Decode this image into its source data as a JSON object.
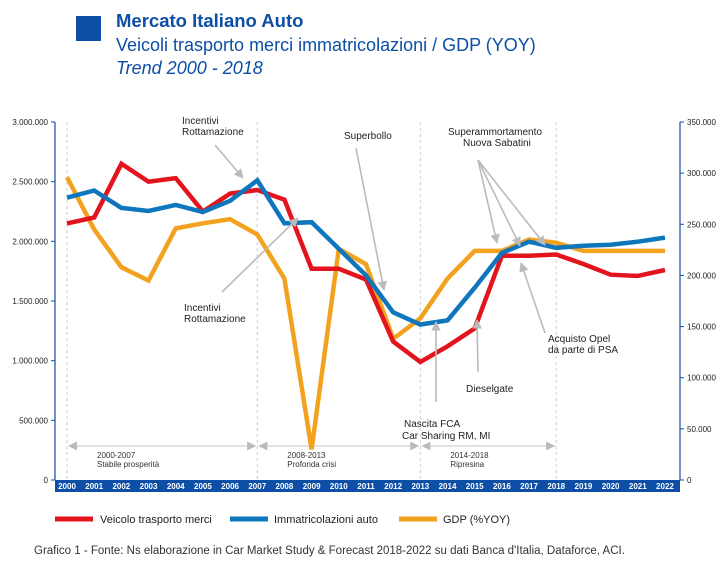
{
  "header": {
    "title": "Mercato Italiano Auto",
    "subtitle": "Veicoli trasporto merci immatricolazioni / GDP (YOY)",
    "trend": "Trend 2000 - 2018"
  },
  "caption": "Grafico 1 - Fonte: Ns elaborazione in Car Market Study & Forecast 2018-2022 su dati Banca d'Italia, Dataforce, ACI.",
  "colors": {
    "red": "#e3141e",
    "blue": "#0e76bc",
    "orange": "#f2a21e",
    "axis": "#0d4ea6",
    "grid": "#cccccc",
    "band": "#d8d8d8"
  },
  "chart_data": {
    "type": "line",
    "x": [
      "2000",
      "2001",
      "2002",
      "2003",
      "2004",
      "2005",
      "2006",
      "2007",
      "2008",
      "2009",
      "2010",
      "2011",
      "2012",
      "2013",
      "2014",
      "2015",
      "2016",
      "2017",
      "2018",
      "2019",
      "2020",
      "2021",
      "2022"
    ],
    "left_axis": {
      "ylim": [
        0,
        3000000
      ],
      "ticks": [
        "0",
        "500.000",
        "1.000.000",
        "1.500.000",
        "2.000.000",
        "2.500.000",
        "3.000.000"
      ]
    },
    "right_axis": {
      "ylim": [
        0,
        350000
      ],
      "ticks": [
        "0",
        "50.000",
        "100.000",
        "150.000",
        "200.000",
        "250.000",
        "300.000",
        "350.000"
      ]
    },
    "series": [
      {
        "name": "Veicolo trasporto merci",
        "axis": "left",
        "color": "#e3141e",
        "values": [
          2150000,
          2200000,
          2650000,
          2500000,
          2530000,
          2250000,
          2400000,
          2430000,
          2350000,
          1770000,
          1770000,
          1680000,
          1160000,
          990000,
          1120000,
          1270000,
          1880000,
          1880000,
          1890000,
          1810000,
          1720000,
          1710000,
          1760000
        ]
      },
      {
        "name": "Immatricolazioni auto",
        "axis": "right",
        "color": "#0e76bc",
        "values": [
          276000,
          283000,
          266000,
          263000,
          269000,
          262000,
          273000,
          293000,
          251000,
          252000,
          226000,
          200000,
          164000,
          152000,
          156000,
          188000,
          222000,
          233000,
          227000,
          229000,
          230000,
          233000,
          237000
        ]
      },
      {
        "name": "GDP (%YOY)",
        "axis": "right",
        "color": "#f2a21e",
        "values": [
          296000,
          245000,
          208000,
          195000,
          246000,
          251000,
          255000,
          240000,
          197000,
          30000,
          226000,
          211000,
          138000,
          158000,
          197000,
          224000,
          224000,
          235000,
          232000,
          224000,
          224000,
          224000,
          224000
        ]
      }
    ],
    "periods": [
      {
        "label1": "2000-2007",
        "label2": "Stabile prosperità",
        "from": "2000",
        "to": "2007"
      },
      {
        "label1": "2008-2013",
        "label2": "Profonda crisi",
        "from": "2007",
        "to": "2013"
      },
      {
        "label1": "2014-2018",
        "label2": "Ripresina",
        "from": "2013",
        "to": "2018"
      }
    ],
    "annotations": [
      {
        "id": "incentivi1",
        "line1": "Incentivi",
        "line2": "Rottamazione",
        "target": "2007"
      },
      {
        "id": "incentivi2",
        "line1": "Incentivi",
        "line2": "Rottamazione",
        "target": "2008"
      },
      {
        "id": "superbollo",
        "line1": "Superbollo",
        "line2": "",
        "target": "2011"
      },
      {
        "id": "superamm",
        "line1": "Superammortamento",
        "line2": "Nuova Sabatini",
        "target": "2015-2017"
      },
      {
        "id": "fca",
        "line1": "Nascita FCA",
        "line2": "Car Sharing RM, MI",
        "target": "2013"
      },
      {
        "id": "dieselgate",
        "line1": "Dieselgate",
        "line2": "",
        "target": "2015"
      },
      {
        "id": "opel",
        "line1": "Acquisto Opel",
        "line2": "da parte di PSA",
        "target": "2016"
      }
    ],
    "legend_position": "bottom"
  }
}
